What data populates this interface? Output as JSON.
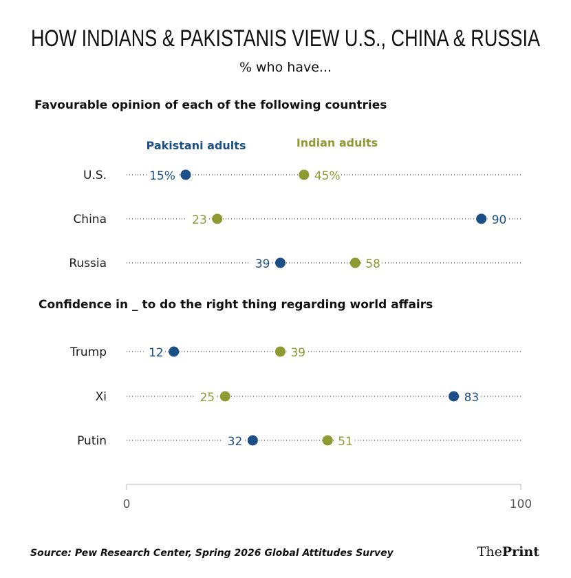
{
  "header": {
    "title": "HOW INDIANS & PAKISTANIS VIEW U.S., CHINA & RUSSIA",
    "subtitle": "% who have..."
  },
  "legend": {
    "pakistani": "Pakistani adults",
    "indian": "Indian adults"
  },
  "colors": {
    "pakistani": "#1c4f86",
    "indian": "#8f9a32",
    "label": "#1a1a1a",
    "dots": "#8a8a8a"
  },
  "chart_data": {
    "type": "scatter",
    "xlim": [
      0,
      100
    ],
    "x_ticks": [
      "0",
      "100"
    ],
    "series_names": [
      "Pakistani adults",
      "Indian adults"
    ],
    "sections": [
      {
        "heading": "Favourable opinion of each of the following countries",
        "rows": [
          {
            "label": "U.S.",
            "pakistani": 15,
            "indian": 45,
            "pakistani_label": "15%",
            "indian_label": "45%"
          },
          {
            "label": "China",
            "pakistani": 90,
            "indian": 23,
            "pakistani_label": "90",
            "indian_label": "23"
          },
          {
            "label": "Russia",
            "pakistani": 39,
            "indian": 58,
            "pakistani_label": "39",
            "indian_label": "58"
          }
        ]
      },
      {
        "heading": "Confidence in _ to do the right thing regarding world affairs",
        "rows": [
          {
            "label": "Trump",
            "pakistani": 12,
            "indian": 39,
            "pakistani_label": "12",
            "indian_label": "39"
          },
          {
            "label": "Xi",
            "pakistani": 83,
            "indian": 25,
            "pakistani_label": "83",
            "indian_label": "25"
          },
          {
            "label": "Putin",
            "pakistani": 32,
            "indian": 51,
            "pakistani_label": "32",
            "indian_label": "51"
          }
        ]
      }
    ]
  },
  "footer": {
    "source": "Source: Pew Research Center, Spring 2026 Global Attitudes Survey",
    "logo": "ThePrint"
  }
}
